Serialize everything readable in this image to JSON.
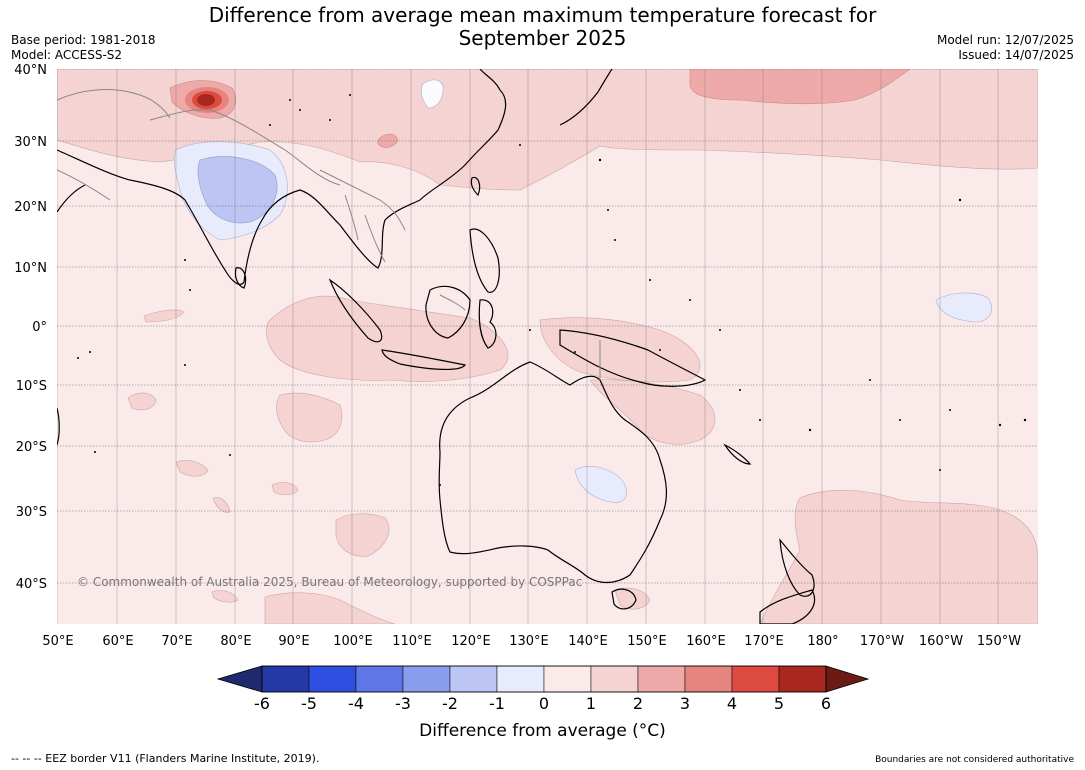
{
  "title": {
    "line1": "Difference from average mean maximum temperature forecast for",
    "line2": "September 2025"
  },
  "meta_left": {
    "base_period": "Base period: 1981-2018",
    "model": "Model: ACCESS-S2"
  },
  "meta_right": {
    "model_run": "Model run: 12/07/2025",
    "issued": "Issued: 14/07/2025"
  },
  "map": {
    "lat_labels": [
      "40°N",
      "30°N",
      "20°N",
      "10°N",
      "0°",
      "10°S",
      "20°S",
      "30°S",
      "40°S"
    ],
    "lon_labels": [
      "50°E",
      "60°E",
      "70°E",
      "80°E",
      "90°E",
      "100°E",
      "110°E",
      "120°E",
      "130°E",
      "140°E",
      "150°E",
      "160°E",
      "170°E",
      "180°",
      "170°W",
      "160°W",
      "150°W"
    ],
    "copyright": "© Commonwealth of Australia 2025, Bureau of Meteorology, supported by COSPPac",
    "background_color": "#fbeaea"
  },
  "colorbar": {
    "label": "Difference from average (°C)",
    "ticks": [
      "-6",
      "-5",
      "-4",
      "-3",
      "-2",
      "-1",
      "0",
      "1",
      "2",
      "3",
      "4",
      "5",
      "6"
    ],
    "colors": {
      "below_min": "#1f2a6e",
      "bins": [
        "#2638a8",
        "#2f4fe0",
        "#5f77e6",
        "#8a9cec",
        "#bcc5f4",
        "#e8ebfb",
        "#fbeaea",
        "#f4d3d2",
        "#edaaa9",
        "#e68480",
        "#dc4a40",
        "#a8271f"
      ],
      "above_max": "#6b1a14"
    }
  },
  "footer": {
    "left": "--  --  -- EEZ border V11 (Flanders Marine Institute, 2019).",
    "right": "Boundaries are not considered authoritative"
  }
}
